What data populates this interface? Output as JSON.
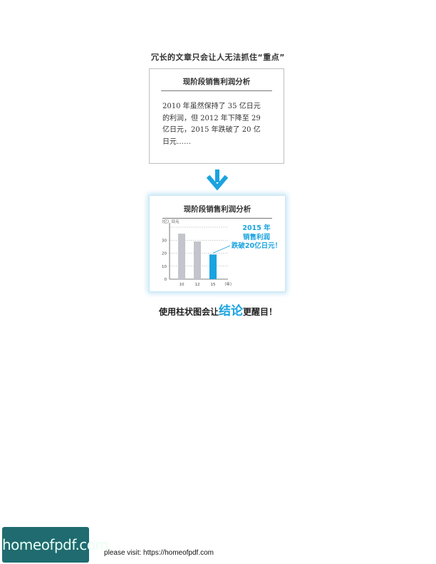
{
  "top_caption": "冗长的文章只会让人无法抓住“重点”",
  "card1": {
    "title": "现阶段销售利润分析",
    "lines": [
      "2010 年虽然保持了 35 亿日元",
      "的利润，但 2012 年下降至 29",
      "亿日元，2015 年跌破了 20 亿",
      "日元……"
    ]
  },
  "arrow_icon": "arrow-down-icon",
  "card2": {
    "title": "现阶段销售利润分析",
    "highlight_lines": [
      "2015 年",
      "销售利润",
      "跌破20亿日元！"
    ]
  },
  "chart_data": {
    "type": "bar",
    "ylabel": "（亿）日元",
    "xlabel": "（年）",
    "categories": [
      "10",
      "12",
      "15"
    ],
    "values": [
      35,
      29,
      19
    ],
    "ylim": [
      0,
      40
    ],
    "yticks": [
      0,
      10,
      20,
      30
    ],
    "bar_colors": [
      "#c4c4cc",
      "#c4c4cc",
      "#1aa3e0"
    ],
    "grid": "dotted"
  },
  "bottom_caption": {
    "before": "使用柱状图会让",
    "accent": "结论",
    "after": "更醒目！"
  },
  "footer": {
    "logo": "homeofpdf.com",
    "text": "please visit: https://homeofpdf.com"
  },
  "colors": {
    "accent": "#1aa3e0",
    "logo_bg": "#1f6b70",
    "bar_gray": "#c4c4cc"
  }
}
